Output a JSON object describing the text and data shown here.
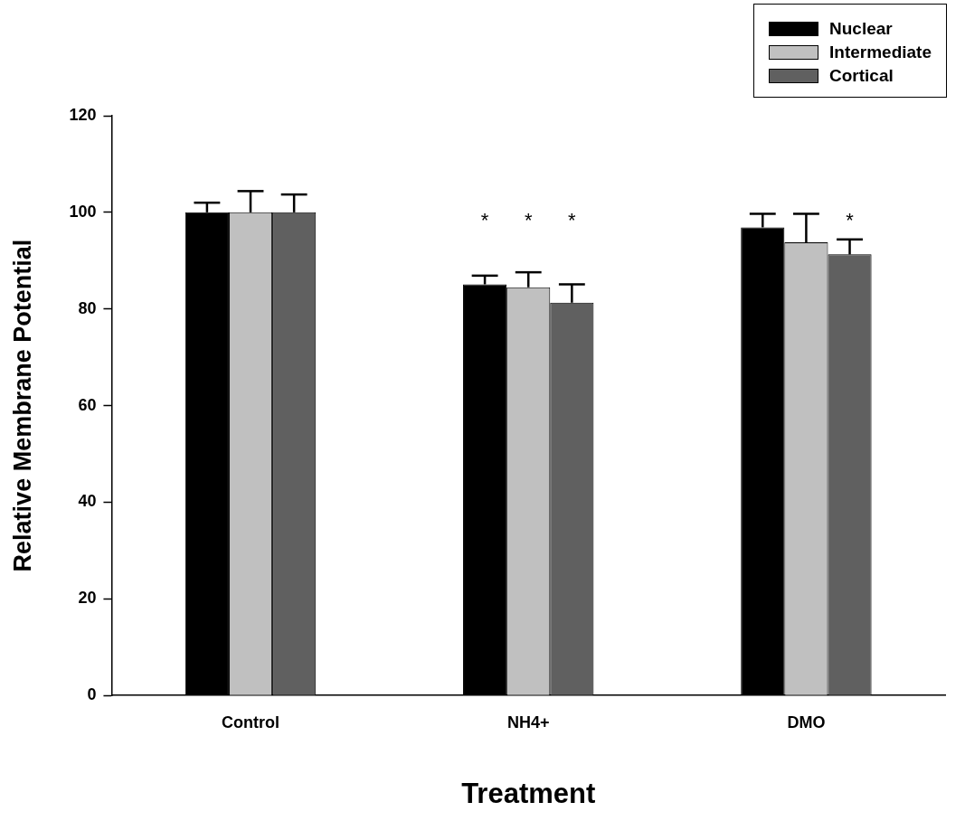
{
  "chart_data": {
    "type": "bar",
    "xlabel": "Treatment",
    "ylabel": "Relative Membrane Potential",
    "categories": [
      "Control",
      "NH4+",
      "DMO"
    ],
    "series": [
      {
        "name": "Nuclear",
        "color": "#000000",
        "values": [
          100,
          85.1,
          96.9
        ],
        "errors": [
          [
            100,
            102
          ],
          [
            85.1,
            86.9
          ],
          [
            96.9,
            99.7
          ]
        ]
      },
      {
        "name": "Intermediate",
        "color": "#c0c0c0",
        "values": [
          100,
          84.5,
          93.8
        ],
        "errors": [
          [
            100,
            104.4
          ],
          [
            84.5,
            87.6
          ],
          [
            93.8,
            99.7
          ]
        ]
      },
      {
        "name": "Cortical",
        "color": "#606060",
        "values": [
          100,
          81.3,
          91.3
        ],
        "errors": [
          [
            100,
            103.7
          ],
          [
            81.3,
            85.1
          ],
          [
            91.3,
            94.4
          ]
        ]
      }
    ],
    "ylim": [
      0,
      120
    ],
    "yticks": [
      0,
      20,
      40,
      60,
      80,
      100,
      120
    ],
    "grid": false,
    "legend": "top right",
    "annotations": [
      "*",
      "*",
      "*",
      "*"
    ]
  }
}
